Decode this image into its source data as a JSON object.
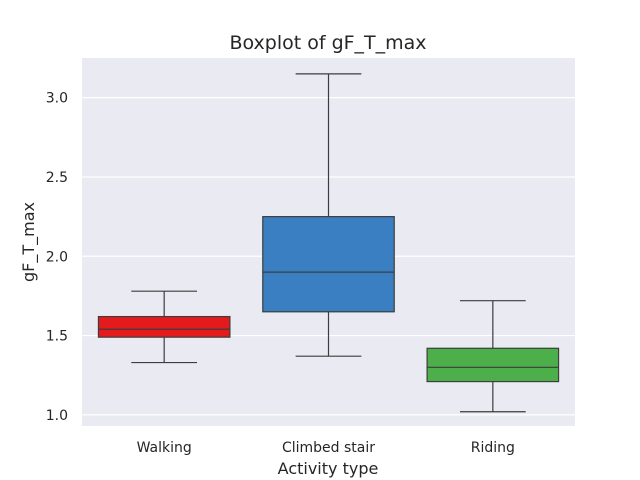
{
  "chart_data": {
    "type": "box",
    "title": "Boxplot of gF_T_max",
    "xlabel": "Activity type",
    "ylabel": "gF_T_max",
    "ylim": [
      0.93,
      3.25
    ],
    "yticks": [
      "1.0",
      "1.5",
      "2.0",
      "2.5",
      "3.0"
    ],
    "ytick_values": [
      1.0,
      1.5,
      2.0,
      2.5,
      3.0
    ],
    "categories": [
      "Walking",
      "Climbed stair",
      "Riding"
    ],
    "boxes": [
      {
        "category": "Walking",
        "color": "#e41a1c",
        "whisker_low": 1.33,
        "q1": 1.49,
        "median": 1.54,
        "q3": 1.62,
        "whisker_high": 1.78
      },
      {
        "category": "Climbed stair",
        "color": "#3a7fc1",
        "whisker_low": 1.37,
        "q1": 1.65,
        "median": 1.9,
        "q3": 2.25,
        "whisker_high": 3.15
      },
      {
        "category": "Riding",
        "color": "#4daf4a",
        "whisker_low": 1.02,
        "q1": 1.21,
        "median": 1.3,
        "q3": 1.42,
        "whisker_high": 1.72
      }
    ],
    "grid": true,
    "background_color": "#eaeaf2",
    "line_color": "#3d3d3d"
  }
}
